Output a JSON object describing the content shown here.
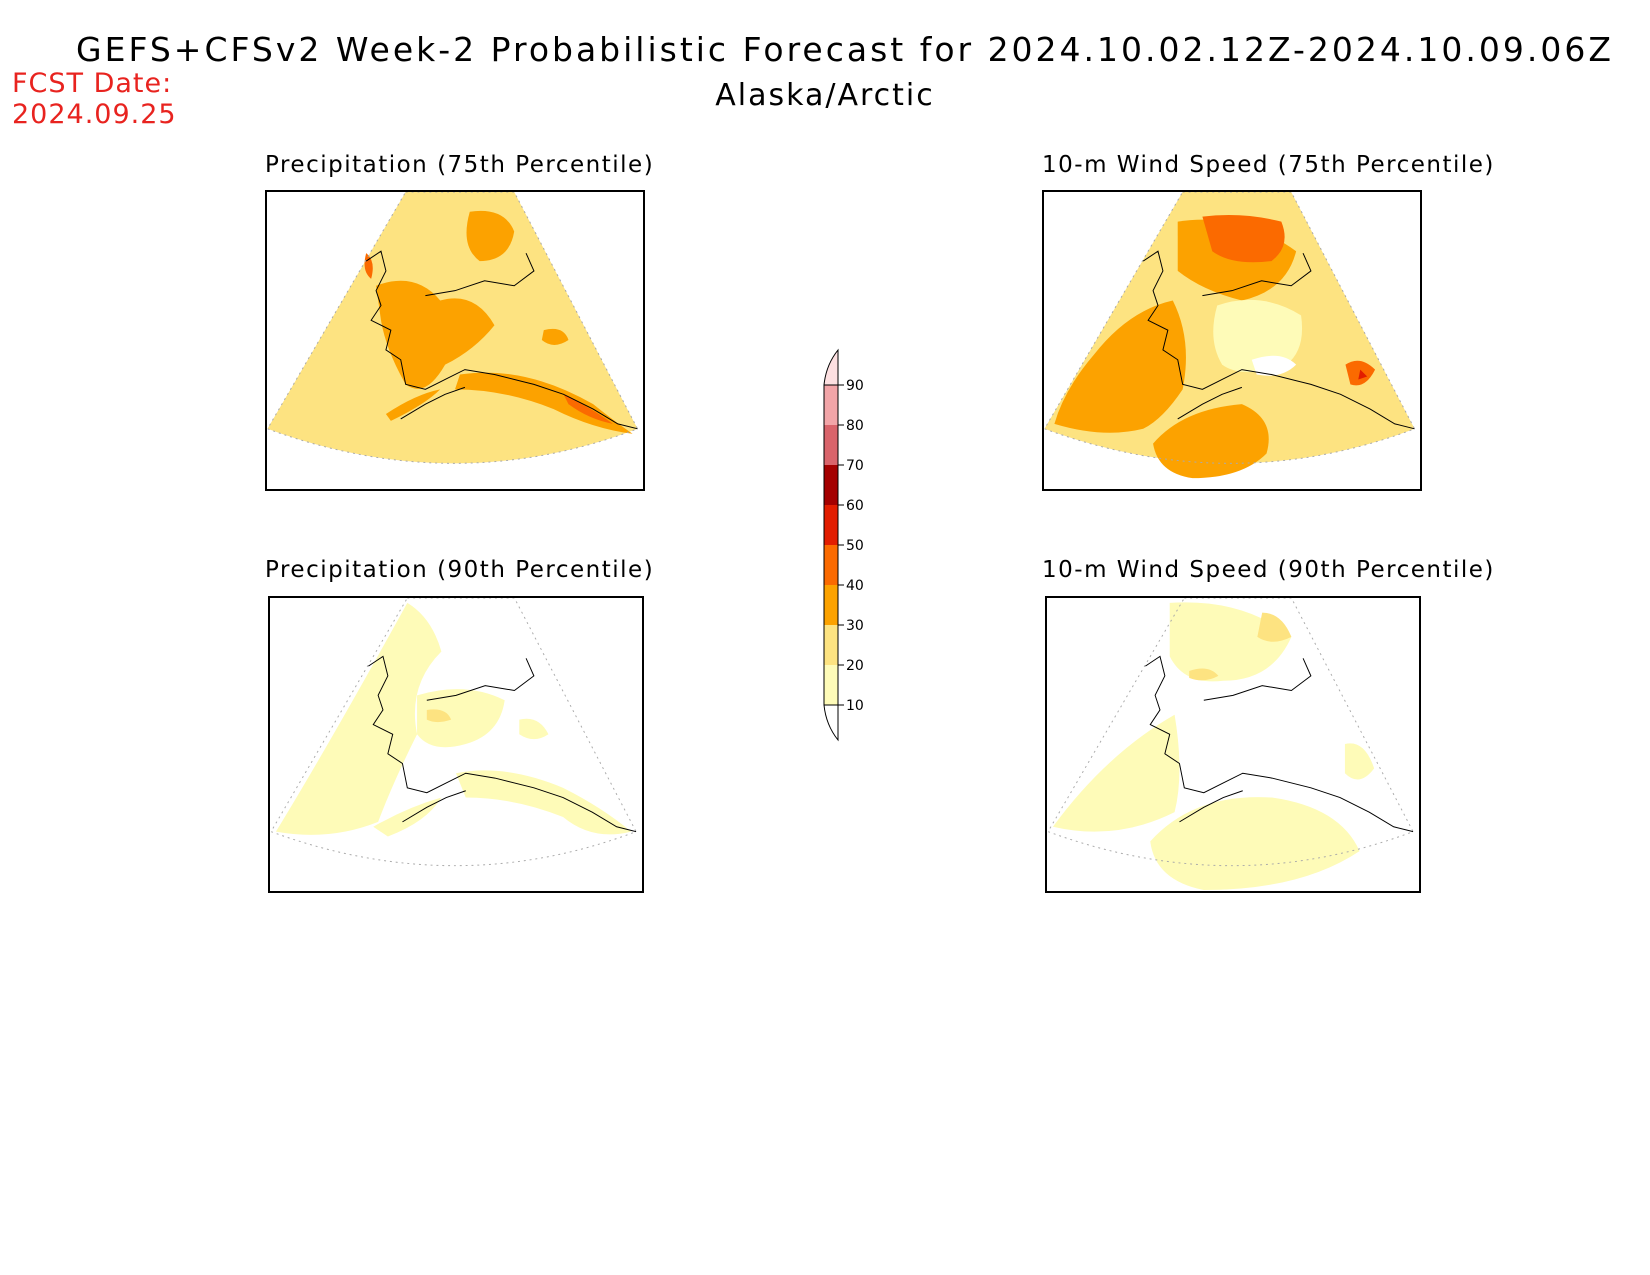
{
  "header": {
    "title": "GEFS+CFSv2 Week-2 Probabilistic Forecast for 2024.10.02.12Z-2024.10.09.06Z",
    "region": "Alaska/Arctic",
    "fcst_label": "FCST Date:",
    "fcst_date": "2024.09.25"
  },
  "panels": [
    {
      "title": "Precipitation (75th Percentile)"
    },
    {
      "title": "10-m Wind Speed (75th Percentile)"
    },
    {
      "title": "Precipitation (90th Percentile)"
    },
    {
      "title": "10-m Wind Speed (90th Percentile)"
    }
  ],
  "colorbar": {
    "levels": [
      "10",
      "20",
      "30",
      "40",
      "50",
      "60",
      "70",
      "80",
      "90"
    ],
    "colors": {
      "c10": "#fefbb8",
      "c20": "#fde381",
      "c30": "#fca200",
      "c40": "#fb6a00",
      "c50": "#e21d00",
      "c60": "#a40000",
      "c70": "#d9646b",
      "c80": "#f2a5a8",
      "c90": "#fde0e1"
    }
  }
}
